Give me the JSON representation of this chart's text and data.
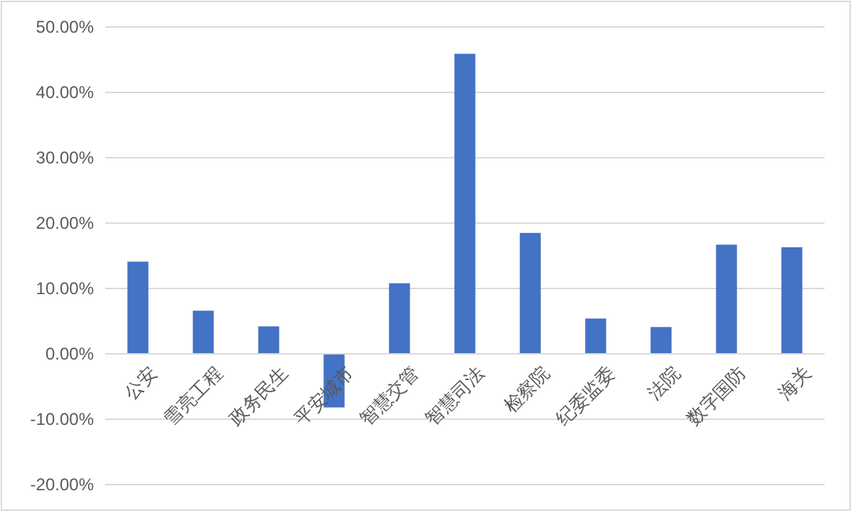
{
  "chart_data": {
    "type": "bar",
    "categories": [
      "公安",
      "雪亮工程",
      "政务民生",
      "平安城市",
      "智慧交管",
      "智慧司法",
      "检察院",
      "纪委监委",
      "法院",
      "数字国防",
      "海关"
    ],
    "values": [
      14.1,
      6.6,
      4.2,
      -8.2,
      10.8,
      45.9,
      18.5,
      5.4,
      4.1,
      16.7,
      16.3
    ],
    "color": "#4472c4",
    "ylim": [
      -20,
      50
    ],
    "yticks": [
      {
        "value": -20,
        "label": "-20.00%"
      },
      {
        "value": -10,
        "label": "-10.00%"
      },
      {
        "value": 0,
        "label": "0.00%"
      },
      {
        "value": 10,
        "label": "10.00%"
      },
      {
        "value": 20,
        "label": "20.00%"
      },
      {
        "value": 30,
        "label": "30.00%"
      },
      {
        "value": 40,
        "label": "40.00%"
      },
      {
        "value": 50,
        "label": "50.00%"
      }
    ],
    "grid": "y"
  }
}
